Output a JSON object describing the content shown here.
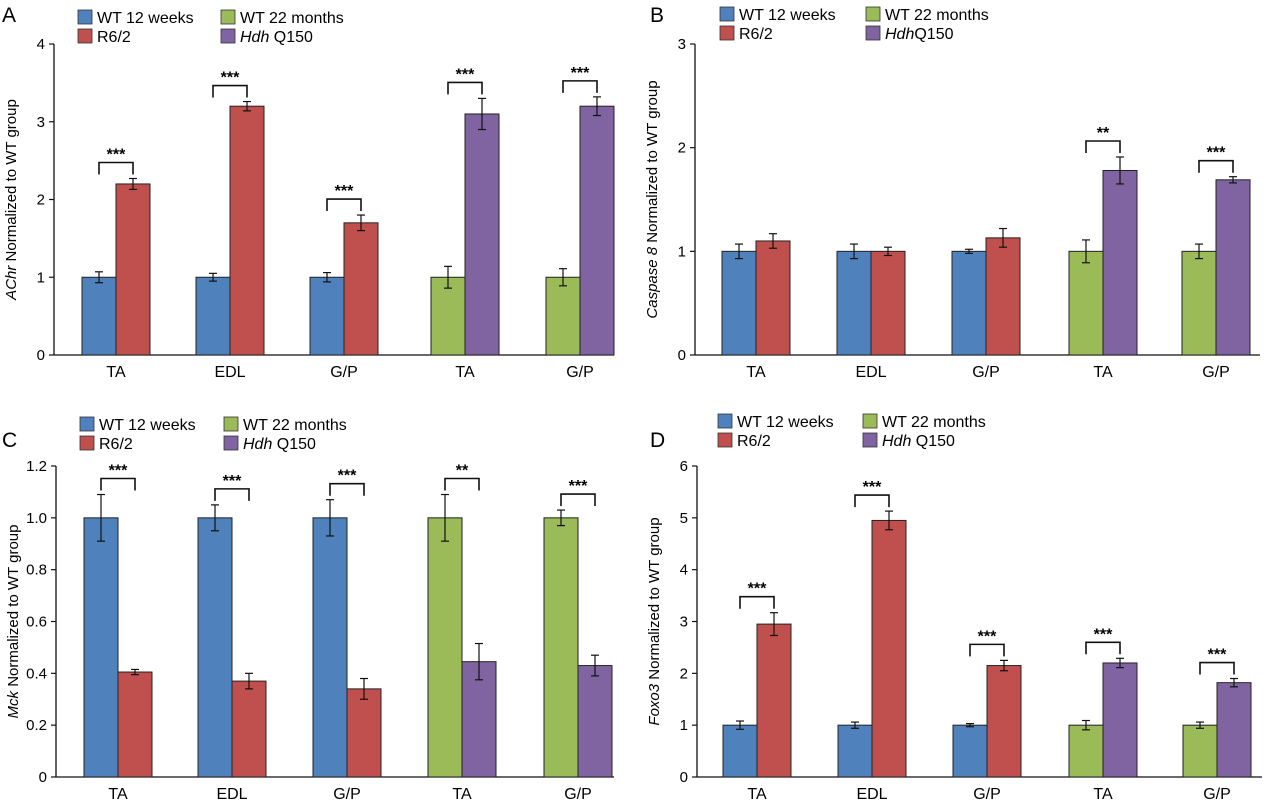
{
  "colors": {
    "wt12": "#4f81bd",
    "r62": "#c0504d",
    "wt22": "#9bbb59",
    "hdh": "#8064a2",
    "axis": "#111111"
  },
  "chart_data": [
    {
      "panel_label": "A",
      "type": "bar",
      "ylabel_italic": "AChr",
      "ylabel_rest": " Normalized to WT group",
      "ylim": [
        0,
        4
      ],
      "yticks": [
        "0",
        "1",
        "2",
        "3",
        "4"
      ],
      "grid": false,
      "legend": [
        {
          "name": "WT 12 weeks",
          "color_key": "wt12"
        },
        {
          "name": "R6/2",
          "color_key": "r62"
        },
        {
          "name": "WT 22 months",
          "color_key": "wt22"
        },
        {
          "italic": "Hdh",
          "name": " Q150",
          "color_key": "hdh"
        }
      ],
      "groups": [
        {
          "label": "TA",
          "control": {
            "color_key": "wt12",
            "value": 1.0,
            "err": 0.07
          },
          "model": {
            "color_key": "r62",
            "value": 2.2,
            "err": 0.07
          },
          "sig": "***"
        },
        {
          "label": "EDL",
          "control": {
            "color_key": "wt12",
            "value": 1.0,
            "err": 0.05
          },
          "model": {
            "color_key": "r62",
            "value": 3.2,
            "err": 0.06
          },
          "sig": "***"
        },
        {
          "label": "G/P",
          "control": {
            "color_key": "wt12",
            "value": 1.0,
            "err": 0.06
          },
          "model": {
            "color_key": "r62",
            "value": 1.7,
            "err": 0.1
          },
          "sig": "***"
        },
        {
          "label": "TA",
          "control": {
            "color_key": "wt22",
            "value": 1.0,
            "err": 0.14
          },
          "model": {
            "color_key": "hdh",
            "value": 3.1,
            "err": 0.2
          },
          "sig": "***"
        },
        {
          "label": "G/P",
          "control": {
            "color_key": "wt22",
            "value": 1.0,
            "err": 0.11
          },
          "model": {
            "color_key": "hdh",
            "value": 3.2,
            "err": 0.12
          },
          "sig": "***"
        }
      ]
    },
    {
      "panel_label": "B",
      "type": "bar",
      "ylabel_italic": "Caspase 8",
      "ylabel_rest": " Normalized to WT group",
      "ylim": [
        0,
        3
      ],
      "yticks": [
        "0",
        "1",
        "2",
        "3"
      ],
      "grid": false,
      "legend": [
        {
          "name": "WT 12 weeks",
          "color_key": "wt12"
        },
        {
          "name": "R6/2",
          "color_key": "r62"
        },
        {
          "name": "WT 22 months",
          "color_key": "wt22"
        },
        {
          "italic": "Hdh",
          "name": "Q150",
          "color_key": "hdh"
        }
      ],
      "groups": [
        {
          "label": "TA",
          "control": {
            "color_key": "wt12",
            "value": 1.0,
            "err": 0.07
          },
          "model": {
            "color_key": "r62",
            "value": 1.1,
            "err": 0.07
          },
          "sig": ""
        },
        {
          "label": "EDL",
          "control": {
            "color_key": "wt12",
            "value": 1.0,
            "err": 0.07
          },
          "model": {
            "color_key": "r62",
            "value": 1.0,
            "err": 0.04
          },
          "sig": ""
        },
        {
          "label": "G/P",
          "control": {
            "color_key": "wt12",
            "value": 1.0,
            "err": 0.02
          },
          "model": {
            "color_key": "r62",
            "value": 1.13,
            "err": 0.09
          },
          "sig": ""
        },
        {
          "label": "TA",
          "control": {
            "color_key": "wt22",
            "value": 1.0,
            "err": 0.11
          },
          "model": {
            "color_key": "hdh",
            "value": 1.78,
            "err": 0.13
          },
          "sig": "**"
        },
        {
          "label": "G/P",
          "control": {
            "color_key": "wt22",
            "value": 1.0,
            "err": 0.07
          },
          "model": {
            "color_key": "hdh",
            "value": 1.69,
            "err": 0.03
          },
          "sig": "***"
        }
      ]
    },
    {
      "panel_label": "C",
      "type": "bar",
      "ylabel_italic": "Mck",
      "ylabel_rest": " Normalized to WT group",
      "ylim": [
        0,
        1.2
      ],
      "yticks": [
        "0",
        "0.2",
        "0.4",
        "0.6",
        "0.8",
        "1.0",
        "1.2"
      ],
      "grid": false,
      "legend": [
        {
          "name": "WT 12 weeks",
          "color_key": "wt12"
        },
        {
          "name": "R6/2",
          "color_key": "r62"
        },
        {
          "name": "WT 22 months",
          "color_key": "wt22"
        },
        {
          "italic": "Hdh",
          "name": " Q150",
          "color_key": "hdh"
        }
      ],
      "groups": [
        {
          "label": "TA",
          "control": {
            "color_key": "wt12",
            "value": 1.0,
            "err": 0.09
          },
          "model": {
            "color_key": "r62",
            "value": 0.405,
            "err": 0.01
          },
          "sig": "***"
        },
        {
          "label": "EDL",
          "control": {
            "color_key": "wt12",
            "value": 1.0,
            "err": 0.05
          },
          "model": {
            "color_key": "r62",
            "value": 0.37,
            "err": 0.03
          },
          "sig": "***"
        },
        {
          "label": "G/P",
          "control": {
            "color_key": "wt12",
            "value": 1.0,
            "err": 0.07
          },
          "model": {
            "color_key": "r62",
            "value": 0.34,
            "err": 0.04
          },
          "sig": "***"
        },
        {
          "label": "TA",
          "control": {
            "color_key": "wt22",
            "value": 1.0,
            "err": 0.09
          },
          "model": {
            "color_key": "hdh",
            "value": 0.445,
            "err": 0.07
          },
          "sig": "**"
        },
        {
          "label": "G/P",
          "control": {
            "color_key": "wt22",
            "value": 1.0,
            "err": 0.03
          },
          "model": {
            "color_key": "hdh",
            "value": 0.43,
            "err": 0.04
          },
          "sig": "***"
        }
      ]
    },
    {
      "panel_label": "D",
      "type": "bar",
      "ylabel_italic": "Foxo3",
      "ylabel_rest": " Normalized to WT group",
      "ylim": [
        0,
        6
      ],
      "yticks": [
        "0",
        "1",
        "2",
        "3",
        "4",
        "5",
        "6"
      ],
      "grid": false,
      "legend": [
        {
          "name": "WT 12 weeks",
          "color_key": "wt12"
        },
        {
          "name": "R6/2",
          "color_key": "r62"
        },
        {
          "name": "WT 22 months",
          "color_key": "wt22"
        },
        {
          "italic": "Hdh",
          "name": " Q150",
          "color_key": "hdh"
        }
      ],
      "groups": [
        {
          "label": "TA",
          "control": {
            "color_key": "wt12",
            "value": 1.0,
            "err": 0.08
          },
          "model": {
            "color_key": "r62",
            "value": 2.95,
            "err": 0.22
          },
          "sig": "***"
        },
        {
          "label": "EDL",
          "control": {
            "color_key": "wt12",
            "value": 1.0,
            "err": 0.06
          },
          "model": {
            "color_key": "r62",
            "value": 4.95,
            "err": 0.18
          },
          "sig": "***"
        },
        {
          "label": "G/P",
          "control": {
            "color_key": "wt12",
            "value": 1.0,
            "err": 0.03
          },
          "model": {
            "color_key": "r62",
            "value": 2.15,
            "err": 0.1
          },
          "sig": "***"
        },
        {
          "label": "TA",
          "control": {
            "color_key": "wt22",
            "value": 1.0,
            "err": 0.09
          },
          "model": {
            "color_key": "hdh",
            "value": 2.2,
            "err": 0.09
          },
          "sig": "***"
        },
        {
          "label": "G/P",
          "control": {
            "color_key": "wt22",
            "value": 1.0,
            "err": 0.06
          },
          "model": {
            "color_key": "hdh",
            "value": 1.82,
            "err": 0.08
          },
          "sig": "***"
        }
      ]
    }
  ]
}
